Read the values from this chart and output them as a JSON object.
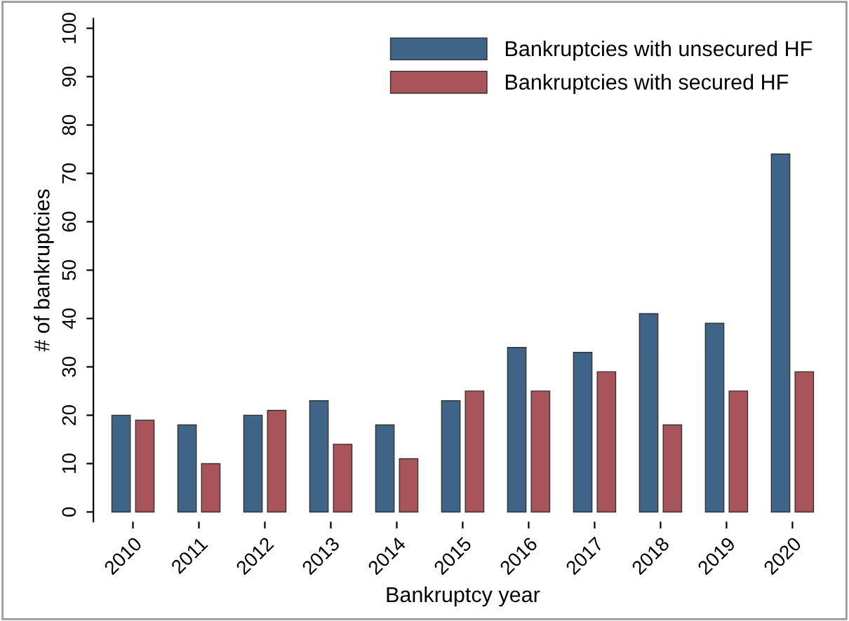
{
  "chart_data": {
    "type": "bar",
    "xlabel": "Bankruptcy year",
    "ylabel": "# of bankruptcies",
    "categories": [
      "2010",
      "2011",
      "2012",
      "2013",
      "2014",
      "2015",
      "2016",
      "2017",
      "2018",
      "2019",
      "2020"
    ],
    "series": [
      {
        "name": "Bankruptcies with unsecured HF",
        "color": "#3e6487",
        "values": [
          20,
          18,
          20,
          23,
          18,
          23,
          34,
          33,
          41,
          39,
          74
        ]
      },
      {
        "name": "Bankruptcies with secured HF",
        "color": "#a8545a",
        "values": [
          19,
          10,
          21,
          14,
          11,
          25,
          25,
          29,
          18,
          25,
          29
        ]
      }
    ],
    "ylim": [
      -2,
      102
    ],
    "yticks": [
      0,
      10,
      20,
      30,
      40,
      50,
      60,
      70,
      80,
      90,
      100
    ],
    "grid": false,
    "legend": "top right"
  }
}
